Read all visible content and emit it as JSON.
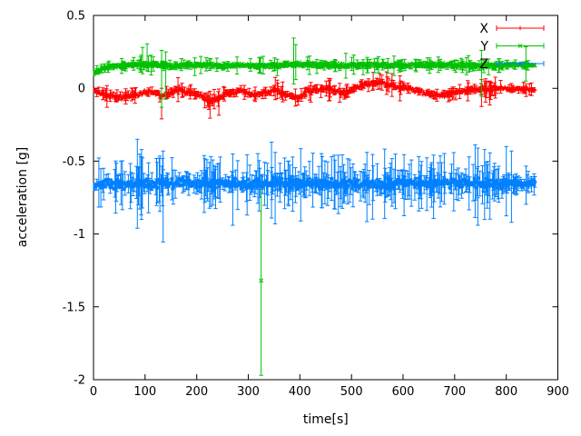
{
  "figure": {
    "background": "#ffffff",
    "border_color": "#000000",
    "text_color": "#000000"
  },
  "chart_data": {
    "type": "scatter-errorbars",
    "title": "",
    "xlabel": "time[s]",
    "ylabel": "acceleration [g]",
    "xlim": [
      0,
      900
    ],
    "ylim": [
      -2,
      0.5
    ],
    "xticks": [
      0,
      100,
      200,
      300,
      400,
      500,
      600,
      700,
      800,
      900
    ],
    "xtick_labels": [
      "0",
      "100",
      "200",
      "300",
      "400",
      "500",
      "600",
      "700",
      "800",
      "900"
    ],
    "yticks": [
      0.5,
      0,
      -0.5,
      -1,
      -1.5,
      -2
    ],
    "ytick_labels": [
      "0.5",
      "0",
      "-0.5",
      "-1",
      "-1.5",
      "-2"
    ],
    "grid": false,
    "legend_position": "top-right-inside",
    "legend_entries": [
      "X",
      "Y",
      "Z"
    ],
    "series": [
      {
        "name": "X",
        "color": "#ff0000",
        "marker": "plus",
        "t_start": 0,
        "t_end": 856,
        "step": 1.3,
        "band": 0.02,
        "err_len": 0.045,
        "err_prob": 0.4,
        "taper_after": 795,
        "taper": 0.6,
        "seed": 11,
        "trend": [
          [
            0,
            -0.01
          ],
          [
            15,
            -0.035
          ],
          [
            45,
            -0.065
          ],
          [
            70,
            -0.05
          ],
          [
            95,
            -0.03
          ],
          [
            115,
            -0.02
          ],
          [
            132,
            -0.055
          ],
          [
            160,
            -0.012
          ],
          [
            185,
            -0.02
          ],
          [
            208,
            -0.05
          ],
          [
            226,
            -0.095
          ],
          [
            244,
            -0.068
          ],
          [
            262,
            -0.03
          ],
          [
            288,
            -0.02
          ],
          [
            308,
            -0.052
          ],
          [
            330,
            -0.03
          ],
          [
            355,
            -0.01
          ],
          [
            378,
            -0.05
          ],
          [
            396,
            -0.075
          ],
          [
            415,
            -0.02
          ],
          [
            437,
            -0.008
          ],
          [
            455,
            -0.002
          ],
          [
            488,
            -0.04
          ],
          [
            520,
            0.025
          ],
          [
            556,
            0.04
          ],
          [
            580,
            0.02
          ],
          [
            610,
            0.0
          ],
          [
            645,
            -0.038
          ],
          [
            680,
            -0.05
          ],
          [
            712,
            -0.02
          ],
          [
            748,
            -0.005
          ],
          [
            790,
            -0.002
          ],
          [
            856,
            -0.008
          ]
        ],
        "outliers": [
          [
            132,
            -0.06,
            -0.21,
            0.0
          ],
          [
            226,
            -0.1,
            -0.205,
            -0.02
          ],
          [
            243,
            -0.08,
            -0.185,
            -0.005
          ],
          [
            752,
            -0.01,
            -0.125,
            0.06
          ],
          [
            760,
            0.0,
            -0.095,
            0.065
          ],
          [
            768,
            -0.02,
            -0.115,
            0.05
          ]
        ]
      },
      {
        "name": "Y",
        "color": "#00c000",
        "marker": "cross",
        "t_start": 0,
        "t_end": 856,
        "step": 1.3,
        "band": 0.016,
        "err_len": 0.04,
        "err_prob": 0.35,
        "taper_after": 795,
        "taper": 0.6,
        "seed": 22,
        "trend": [
          [
            0,
            0.105
          ],
          [
            12,
            0.13
          ],
          [
            30,
            0.15
          ],
          [
            60,
            0.155
          ],
          [
            95,
            0.165
          ],
          [
            120,
            0.16
          ],
          [
            150,
            0.152
          ],
          [
            185,
            0.158
          ],
          [
            220,
            0.16
          ],
          [
            260,
            0.155
          ],
          [
            300,
            0.158
          ],
          [
            330,
            0.152
          ],
          [
            360,
            0.158
          ],
          [
            388,
            0.168
          ],
          [
            420,
            0.16
          ],
          [
            460,
            0.158
          ],
          [
            500,
            0.157
          ],
          [
            540,
            0.16
          ],
          [
            580,
            0.157
          ],
          [
            620,
            0.158
          ],
          [
            660,
            0.16
          ],
          [
            700,
            0.16
          ],
          [
            740,
            0.152
          ],
          [
            780,
            0.158
          ],
          [
            820,
            0.16
          ],
          [
            856,
            0.158
          ]
        ],
        "outliers": [
          [
            95,
            0.17,
            0.1,
            0.28
          ],
          [
            104,
            0.175,
            0.12,
            0.305
          ],
          [
            132,
            0.15,
            -0.13,
            0.26
          ],
          [
            140,
            0.152,
            -0.075,
            0.25
          ],
          [
            325,
            -1.32,
            -1.97,
            -0.67
          ],
          [
            388,
            0.17,
            0.03,
            0.345
          ],
          [
            392,
            0.168,
            0.06,
            0.3
          ],
          [
            489,
            0.158,
            0.07,
            0.24
          ],
          [
            752,
            0.15,
            -0.055,
            0.26
          ],
          [
            838,
            0.16,
            0.05,
            0.285
          ]
        ]
      },
      {
        "name": "Z",
        "color": "#0080ff",
        "marker": "star",
        "t_start": 0,
        "t_end": 856,
        "step": 1.3,
        "band": 0.04,
        "err_len": 0.13,
        "err_prob": 0.55,
        "taper_after": 795,
        "taper": 0.6,
        "seed": 33,
        "trend": [
          [
            0,
            -0.672
          ],
          [
            25,
            -0.66
          ],
          [
            60,
            -0.655
          ],
          [
            120,
            -0.657
          ],
          [
            180,
            -0.65
          ],
          [
            240,
            -0.655
          ],
          [
            300,
            -0.657
          ],
          [
            360,
            -0.652
          ],
          [
            420,
            -0.655
          ],
          [
            480,
            -0.655
          ],
          [
            540,
            -0.657
          ],
          [
            600,
            -0.652
          ],
          [
            660,
            -0.65
          ],
          [
            720,
            -0.65
          ],
          [
            780,
            -0.655
          ],
          [
            856,
            -0.65
          ]
        ],
        "outliers": [
          [
            85,
            -0.65,
            -0.96,
            -0.35
          ],
          [
            93,
            -0.655,
            -0.9,
            -0.42
          ],
          [
            135,
            -0.66,
            -1.055,
            -0.43
          ],
          [
            270,
            -0.66,
            -0.94,
            -0.45
          ],
          [
            345,
            -0.65,
            -0.89,
            -0.37
          ],
          [
            352,
            -0.657,
            -0.93,
            -0.44
          ],
          [
            530,
            -0.66,
            -0.915,
            -0.44
          ],
          [
            745,
            -0.65,
            -0.94,
            -0.41
          ],
          [
            758,
            -0.655,
            -0.9,
            -0.42
          ],
          [
            800,
            -0.64,
            -0.875,
            -0.4
          ],
          [
            810,
            -0.65,
            -0.92,
            -0.43
          ]
        ]
      }
    ]
  }
}
